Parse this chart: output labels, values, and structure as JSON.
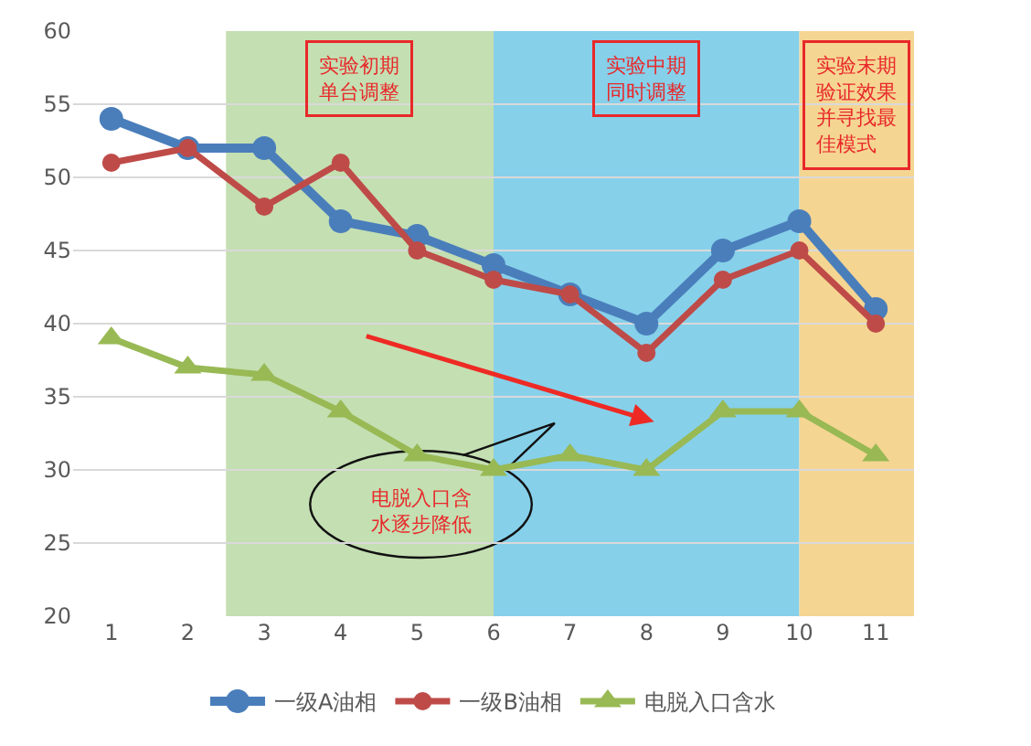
{
  "chart_data": {
    "type": "line",
    "x": [
      1,
      2,
      3,
      4,
      5,
      6,
      7,
      8,
      9,
      10,
      11
    ],
    "series": [
      {
        "name": "一级A油相",
        "color": "#4a7ebb",
        "marker": "circle",
        "values": [
          54,
          52,
          52,
          47,
          46,
          44,
          42,
          40,
          45,
          47,
          41
        ]
      },
      {
        "name": "一级B油相",
        "color": "#be4b48",
        "marker": "circle",
        "values": [
          51,
          52,
          48,
          51,
          45,
          43,
          42,
          38,
          43,
          45,
          40
        ]
      },
      {
        "name": "电脱入口含水",
        "color": "#98b954",
        "marker": "triangle",
        "values": [
          39,
          37,
          36.5,
          34,
          31,
          30,
          31,
          30,
          34,
          34,
          31
        ]
      }
    ],
    "xlim": [
      0.5,
      11.5
    ],
    "xticks": [
      1,
      2,
      3,
      4,
      5,
      6,
      7,
      8,
      9,
      10,
      11
    ],
    "ylim": [
      20,
      60
    ],
    "yticks": [
      20,
      25,
      30,
      35,
      40,
      45,
      50,
      55,
      60
    ],
    "bands": [
      {
        "axis": "x",
        "from": 2.5,
        "to": 6,
        "label": "实验初期单台调整",
        "color": "#c4dfb2"
      },
      {
        "axis": "x",
        "from": 6,
        "to": 10,
        "label": "实验中期同时调整",
        "color": "#86d0ea"
      },
      {
        "axis": "x",
        "from": 10,
        "to": 11.5,
        "label": "实验末期验证效果并寻找最佳模式",
        "color": "#f5d592"
      }
    ],
    "annotations": [
      "电脱入口含水逐步降低"
    ],
    "grid": "y",
    "legend": "bottom",
    "line_style": "solid"
  }
}
